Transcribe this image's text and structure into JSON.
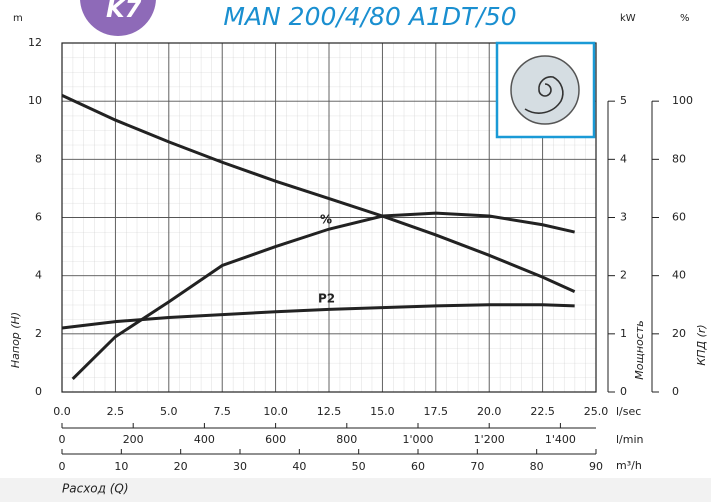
{
  "chart_data": {
    "type": "line",
    "badge": "K7",
    "title": "MAN 200/4/80 A1DT/50",
    "xlim": [
      0,
      25
    ],
    "xticks": [
      {
        "value": 0,
        "label": "0.0"
      },
      {
        "value": 2.5,
        "label": "2.5"
      },
      {
        "value": 5,
        "label": "5.0"
      },
      {
        "value": 7.5,
        "label": "7.5"
      },
      {
        "value": 10,
        "label": "10.0"
      },
      {
        "value": 12.5,
        "label": "12.5"
      },
      {
        "value": 15,
        "label": "15.0"
      },
      {
        "value": 17.5,
        "label": "17.5"
      },
      {
        "value": 20,
        "label": "20.0"
      },
      {
        "value": 22.5,
        "label": "22.5"
      },
      {
        "value": 25,
        "label": "25.0"
      }
    ],
    "xunit": "l/sec",
    "x2lim": [
      0,
      1500
    ],
    "x2ticks": [
      0,
      200,
      400,
      600,
      800,
      {
        "value": 1000,
        "label": "1'000"
      },
      {
        "value": 1200,
        "label": "1'200"
      },
      {
        "value": 1400,
        "label": "1'400"
      }
    ],
    "x2unit": "l/min",
    "x3lim": [
      0,
      90
    ],
    "x3ticks": [
      0,
      10,
      20,
      30,
      40,
      50,
      60,
      70,
      80,
      90
    ],
    "x3unit": "m³/h",
    "xlabel": "Расход (Q)",
    "ylim": [
      0,
      12
    ],
    "yticks": [
      0,
      2,
      4,
      6,
      8,
      10,
      12
    ],
    "yunit": "m",
    "ylabel": "Напор (H)",
    "y2lim": [
      0,
      6
    ],
    "y2ticks": [
      0,
      1,
      2,
      3,
      4,
      5
    ],
    "y2unit": "kW",
    "y2label": "Мощность",
    "y3lim": [
      0,
      120
    ],
    "y3ticks": [
      0,
      20,
      40,
      60,
      80,
      100
    ],
    "y3unit": "%",
    "y3label": "КПД (r)",
    "grid": true,
    "series": [
      {
        "color": "#222222",
        "x": [
          0,
          2.5,
          5,
          7.5,
          10,
          12.5,
          15,
          17.5,
          20,
          22.5,
          24
        ],
        "values": [
          10.2,
          9.35,
          8.6,
          7.9,
          7.25,
          6.65,
          6.05,
          5.4,
          4.7,
          3.95,
          3.45
        ]
      },
      {
        "name": "%",
        "axis": "y3",
        "color": "#222222",
        "x": [
          0.5,
          2.5,
          5,
          7.5,
          10,
          12.5,
          15,
          17.5,
          20,
          22.5,
          24
        ],
        "values": [
          4.5,
          19,
          31,
          43.5,
          50,
          56,
          60.5,
          61.5,
          60.5,
          57.5,
          55
        ]
      },
      {
        "name": "P2",
        "axis": "y2",
        "color": "#222222",
        "x": [
          0,
          2.5,
          5,
          7.5,
          10,
          12.5,
          15,
          17.5,
          20,
          22.5,
          24
        ],
        "values": [
          1.1,
          1.21,
          1.28,
          1.33,
          1.38,
          1.42,
          1.45,
          1.48,
          1.5,
          1.5,
          1.48
        ]
      }
    ]
  }
}
